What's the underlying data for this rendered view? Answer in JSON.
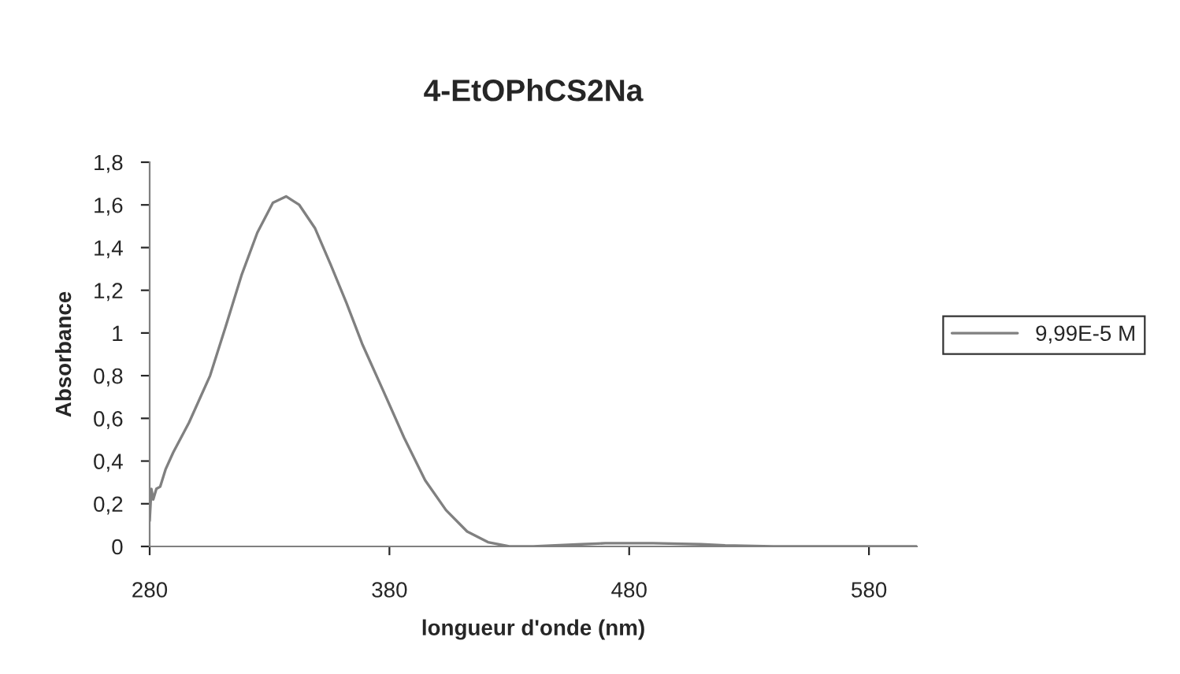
{
  "chart_data": {
    "type": "line",
    "title": "4-EtOPhCS2Na",
    "xlabel": "longueur d'onde (nm)",
    "ylabel": "Absorbance",
    "xlim": [
      280,
      600
    ],
    "xticks": [
      280,
      380,
      480,
      580
    ],
    "ylim": [
      0,
      1.8
    ],
    "yticks": [
      0,
      {
        "value": 0.2,
        "label": "0,2"
      },
      {
        "value": 0.4,
        "label": "0,4"
      },
      {
        "value": 0.6,
        "label": "0,6"
      },
      {
        "value": 0.8,
        "label": "0,8"
      },
      1,
      {
        "value": 1.2,
        "label": "1,2"
      },
      {
        "value": 1.4,
        "label": "1,4"
      },
      {
        "value": 1.6,
        "label": "1,6"
      },
      {
        "value": 1.8,
        "label": "1,8"
      }
    ],
    "grid": false,
    "legend": "right",
    "series": [
      {
        "name": "9,99E-5 M",
        "color": "#808080",
        "x": [
          280,
          280.7,
          281.5,
          282.8,
          284.4,
          286.6,
          289.8,
          296.4,
          305.2,
          311.7,
          318.3,
          324.9,
          331.4,
          336.9,
          342.4,
          349,
          355.5,
          362.1,
          368.6,
          377.4,
          386.1,
          394.9,
          403.6,
          412.4,
          421.1,
          430,
          440,
          460,
          470,
          490,
          510,
          520,
          540,
          560,
          600
        ],
        "values": [
          0.12,
          0.27,
          0.22,
          0.27,
          0.28,
          0.36,
          0.44,
          0.58,
          0.8,
          1.03,
          1.27,
          1.47,
          1.61,
          1.64,
          1.6,
          1.49,
          1.32,
          1.14,
          0.95,
          0.73,
          0.51,
          0.31,
          0.17,
          0.07,
          0.02,
          0.0,
          0.0,
          0.01,
          0.015,
          0.015,
          0.01,
          0.005,
          0.0,
          0.0,
          0.0
        ]
      }
    ]
  }
}
